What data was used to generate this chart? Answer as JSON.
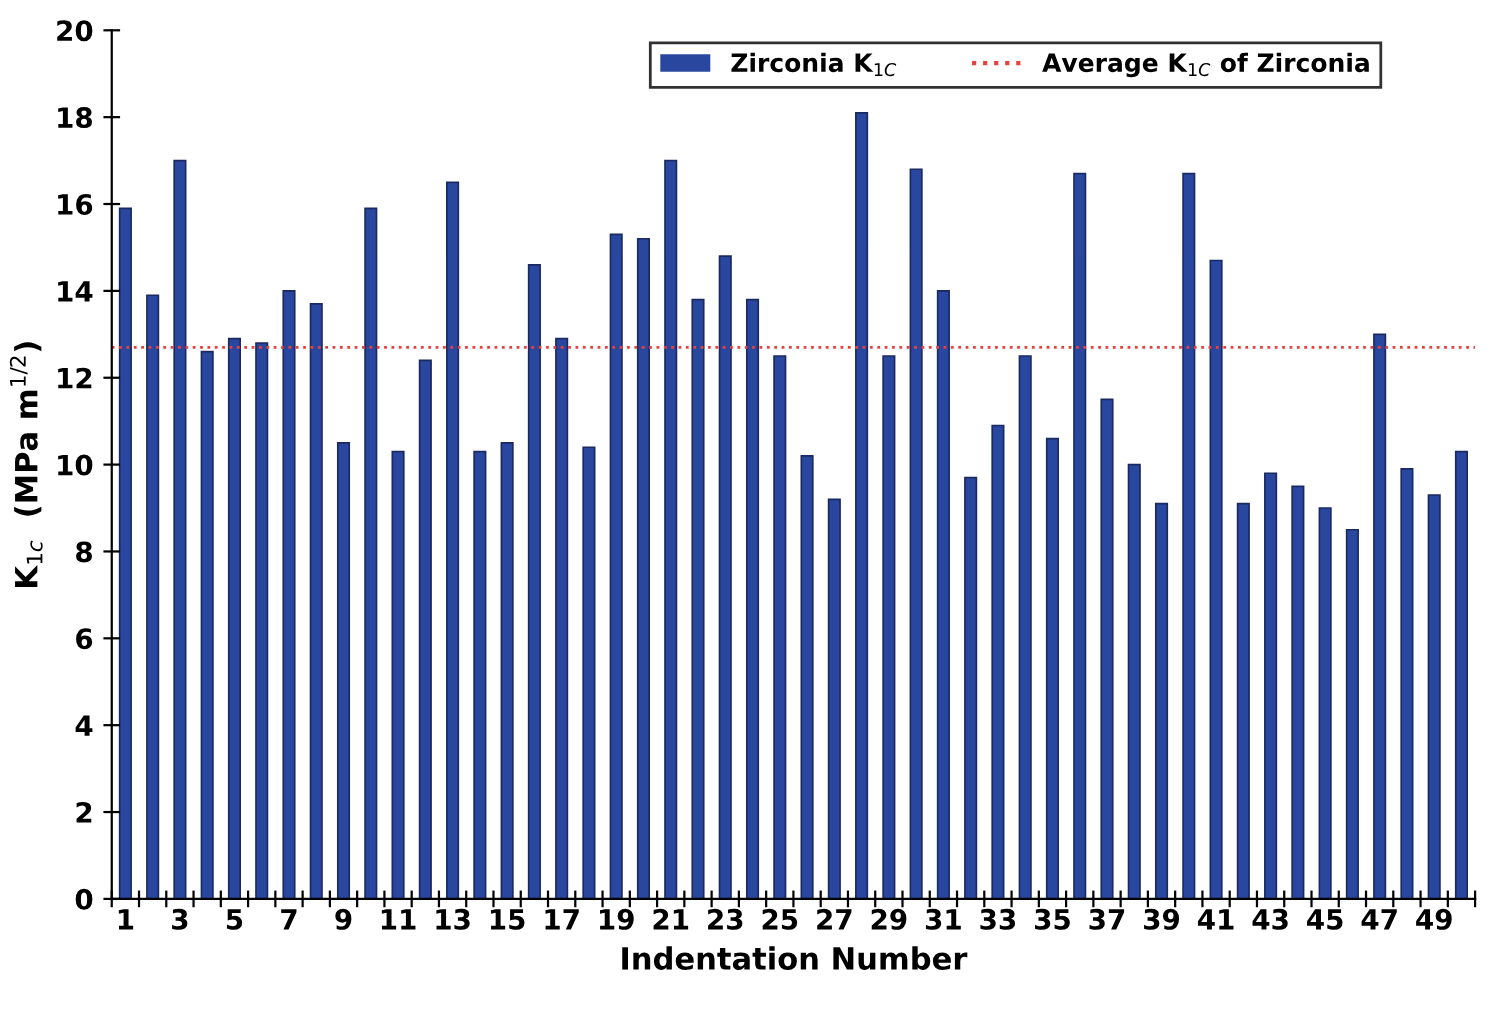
{
  "chart_data": {
    "type": "bar",
    "xlabel": "Indentation Number",
    "ylabel": "K$_{1c}$  (MPa m$^{1/2}$)",
    "categories": [
      "1",
      null,
      "3",
      null,
      "5",
      null,
      "7",
      null,
      "9",
      null,
      "11",
      null,
      "13",
      null,
      "15",
      null,
      "17",
      null,
      "19",
      null,
      "21",
      null,
      "23",
      null,
      "25",
      null,
      "27",
      null,
      "29",
      null,
      "31",
      null,
      "33",
      null,
      "35",
      null,
      "37",
      null,
      "39",
      null,
      "41",
      null,
      "43",
      null,
      "45",
      null,
      "47",
      null,
      "49",
      null
    ],
    "series": [
      {
        "name": "Zirconia K$_{1C}$",
        "color": "#2a47a0",
        "values": [
          15.9,
          13.9,
          17.0,
          12.6,
          12.9,
          12.8,
          14.0,
          13.7,
          10.5,
          15.9,
          10.3,
          12.4,
          16.5,
          10.3,
          10.5,
          14.6,
          12.9,
          10.4,
          15.3,
          15.2,
          17.0,
          13.8,
          14.8,
          13.8,
          12.5,
          10.2,
          9.2,
          18.1,
          12.5,
          16.8,
          14.0,
          9.7,
          10.9,
          12.5,
          10.6,
          16.7,
          11.5,
          10.0,
          9.1,
          16.7,
          14.7,
          9.1,
          9.8,
          9.5,
          9.0,
          8.5,
          13.0,
          9.9,
          9.3,
          10.3
        ]
      }
    ],
    "ref_lines": [
      {
        "axis": "y",
        "value": 12.7,
        "label": "Average K$_{1C}$ of Zirconia",
        "color": "#e8413c",
        "line_style": "dotted"
      }
    ],
    "ylim": [
      0,
      20
    ],
    "yticks": [
      0,
      2,
      4,
      6,
      8,
      10,
      12,
      14,
      16,
      18,
      20
    ],
    "grid": false,
    "legend": "top right"
  }
}
